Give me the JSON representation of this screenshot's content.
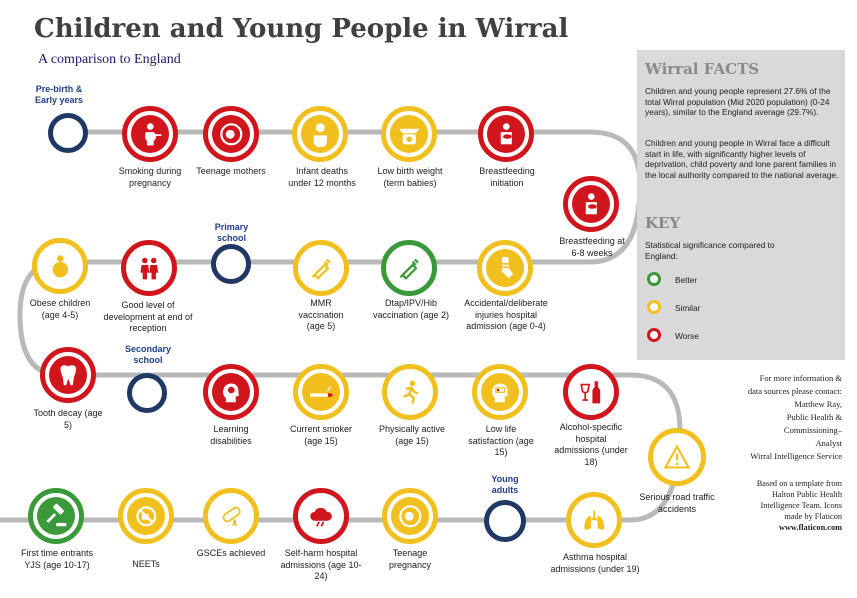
{
  "header": {
    "title": "Children and Young People in Wirral",
    "subtitle": "A comparison to England"
  },
  "stages": {
    "pre_birth": "Pre-birth & Early years",
    "primary": "Primary school",
    "secondary": "Secondary school",
    "young_adults": "Young adults"
  },
  "indicators": [
    {
      "label": "Smoking during pregnancy",
      "status": "Worse",
      "icon": "pregnant-smoking-icon"
    },
    {
      "label": "Teenage mothers",
      "status": "Worse",
      "icon": "pregnancy-icon"
    },
    {
      "label": "Infant deaths under 12 months",
      "status": "Similar",
      "icon": "baby-icon"
    },
    {
      "label": "Low birth weight (term babies)",
      "status": "Similar",
      "icon": "weighing-scale-icon"
    },
    {
      "label": "Breastfeeding initiation",
      "status": "Worse",
      "icon": "breastfeeding-icon"
    },
    {
      "label": "Breastfeeding at 6-8 weeks",
      "status": "Worse",
      "icon": "breastfeeding-icon"
    },
    {
      "label": "Accidental/deliberate injuries hospital admission (age 0-4)",
      "status": "Similar",
      "icon": "injured-leg-icon"
    },
    {
      "label": "Dtap/IPV/Hib vaccination (age 2)",
      "status": "Better",
      "icon": "syringe-icon"
    },
    {
      "label": "MMR vaccination (age 5)",
      "status": "Similar",
      "icon": "syringe-icon"
    },
    {
      "label": "Good level of development at end of reception",
      "status": "Worse",
      "icon": "children-icon"
    },
    {
      "label": "Obese children (age 4-5)",
      "status": "Similar",
      "icon": "obese-child-icon"
    },
    {
      "label": "Tooth decay (age 5)",
      "status": "Worse",
      "icon": "tooth-icon"
    },
    {
      "label": "Learning disabilities",
      "status": "Worse",
      "icon": "head-gear-icon"
    },
    {
      "label": "Current smoker (age 15)",
      "status": "Similar",
      "icon": "cigarette-icon"
    },
    {
      "label": "Physically active (age 15)",
      "status": "Similar",
      "icon": "running-icon"
    },
    {
      "label": "Low life satisfaction (age 15)",
      "status": "Similar",
      "icon": "low-battery-head-icon"
    },
    {
      "label": "Alcohol-specific hospital admissions (under 18)",
      "status": "Worse",
      "icon": "wine-bottle-icon"
    },
    {
      "label": "Serious road traffic accidents",
      "status": "Similar",
      "icon": "warning-sign-icon"
    },
    {
      "label": "Asthma hospital admissions (under 19)",
      "status": "Similar",
      "icon": "lungs-icon"
    },
    {
      "label": "Teenage pregnancy",
      "status": "Similar",
      "icon": "pregnancy-icon"
    },
    {
      "label": "Self-harm hospital admissions (age 10-24)",
      "status": "Worse",
      "icon": "storm-cloud-icon"
    },
    {
      "label": "GSCEs achieved",
      "status": "Similar",
      "icon": "diploma-icon"
    },
    {
      "label": "NEETs",
      "status": "Similar",
      "icon": "no-entry-icon"
    },
    {
      "label": "First time entrants YJS (age 10-17)",
      "status": "Better",
      "icon": "gavel-icon"
    }
  ],
  "facts": {
    "heading": "Wirral FACTS",
    "para1": "Children and young people represent 27.6% of the total Wirral population (Mid 2020 population) (0-24 years), similar to the England average (29.7%).",
    "para2": "Children and young people in Wirral face a difficult start in life, with significantly higher levels of deprivation, child poverty and lone parent families in the local authority compared to the national average."
  },
  "key": {
    "heading": "KEY",
    "intro": "Statistical significance compared to England:",
    "better": "Better",
    "similar": "Similar",
    "worse": "Worse"
  },
  "contact": {
    "l1": "For more information &",
    "l2": "data sources please contact:",
    "l3": "Matthew Ray,",
    "l4": "Public Health &",
    "l5": "Commissioning–",
    "l6": "Analyst",
    "l7": "Wirral Intelligence Service"
  },
  "credit": {
    "l1": "Based on a template from",
    "l2": "Halton Public Health",
    "l3": "Intelligence Team. Icons",
    "l4": "made by Flaticon",
    "l5": "www.flaticon.com"
  },
  "colors": {
    "better": "#3a9a3a",
    "similar": "#f2c01e",
    "worse": "#d0161c",
    "track": "#b9b9b9",
    "stage": "#1f3864"
  }
}
